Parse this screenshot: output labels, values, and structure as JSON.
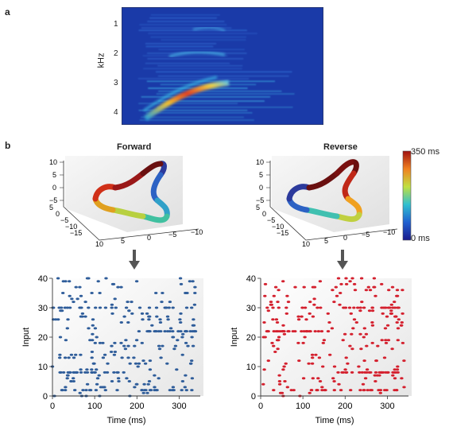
{
  "panel_a": {
    "label": "a",
    "ylabel": "kHz",
    "yticks": [
      "1",
      "2",
      "3",
      "4"
    ]
  },
  "panel_b": {
    "label": "b",
    "forward_title": "Forward",
    "reverse_title": "Reverse",
    "colorbar": {
      "top": "350 ms",
      "bottom": "0 ms"
    },
    "axis3d": {
      "vertical_ticks": [
        "10",
        "5",
        "0",
        "−5"
      ],
      "depth_ticks": [
        "5",
        "0",
        "−5",
        "−10",
        "−15"
      ],
      "horizontal_ticks": [
        "10",
        "5",
        "0",
        "−5",
        "−10"
      ]
    }
  },
  "chart_data": [
    {
      "type": "scatter",
      "name": "forward-raster",
      "xlabel": "Time (ms)",
      "ylabel": "Input",
      "xticks": [
        0,
        100,
        200,
        300
      ],
      "yticks": [
        0,
        10,
        20,
        30,
        40
      ],
      "xlim": [
        0,
        350
      ],
      "ylim": [
        0,
        40
      ],
      "color": "#2f5d9a",
      "dense_rows": [
        2,
        8,
        22,
        30
      ]
    },
    {
      "type": "scatter",
      "name": "reverse-raster",
      "xlabel": "Time (ms)",
      "ylabel": "Input",
      "xticks": [
        0,
        100,
        200,
        300
      ],
      "yticks": [
        0,
        10,
        20,
        30,
        40
      ],
      "xlim": [
        0,
        350
      ],
      "ylim": [
        0,
        40
      ],
      "color": "#d4202e",
      "dense_rows": [
        2,
        8,
        22,
        30
      ]
    }
  ]
}
